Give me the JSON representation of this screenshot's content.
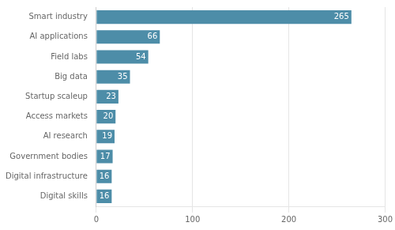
{
  "chart_data": {
    "type": "bar",
    "orientation": "horizontal",
    "categories": [
      "Smart industry",
      "AI applications",
      "Field labs",
      "Big data",
      "Startup scaleup",
      "Access markets",
      "AI research",
      "Government bodies",
      "Digital infrastructure",
      "Digital skills"
    ],
    "values": [
      265,
      66,
      54,
      35,
      23,
      20,
      19,
      17,
      16,
      16
    ],
    "color": "#4d8da8",
    "xlim": [
      0,
      300
    ],
    "xticks": [
      0,
      100,
      200,
      300
    ],
    "grid": true,
    "data_labels": true
  }
}
